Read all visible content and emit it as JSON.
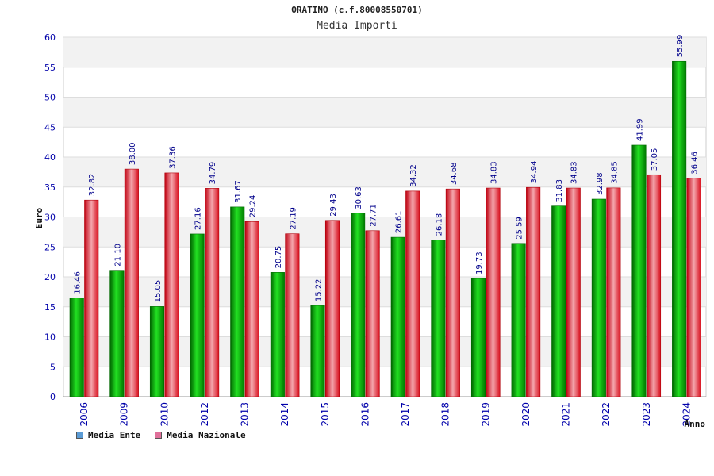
{
  "header": {
    "title": "ORATINO (c.f.80008550701)",
    "subtitle": "Media Importi"
  },
  "legend": {
    "items": [
      {
        "label": "Media Ente",
        "color": "#5b9bd5"
      },
      {
        "label": "Media Nazionale",
        "color": "#e0709a"
      }
    ]
  },
  "chart_data": {
    "type": "bar",
    "title": "Media Importi",
    "xlabel": "Anno",
    "ylabel": "Euro",
    "ylim": [
      0,
      60
    ],
    "yticks": [
      0,
      5,
      10,
      15,
      20,
      25,
      30,
      35,
      40,
      45,
      50,
      55,
      60
    ],
    "grid": true,
    "legend_position": "bottom-left",
    "categories": [
      "2006",
      "2009",
      "2010",
      "2012",
      "2013",
      "2014",
      "2015",
      "2016",
      "2017",
      "2018",
      "2019",
      "2020",
      "2021",
      "2022",
      "2023",
      "2024"
    ],
    "series": [
      {
        "name": "Media Ente",
        "color": "#00c000",
        "values": [
          16.46,
          21.1,
          15.05,
          27.16,
          31.67,
          20.75,
          15.22,
          30.63,
          26.61,
          26.18,
          19.73,
          25.59,
          31.83,
          32.98,
          41.99,
          55.99
        ],
        "labels": [
          "16.46",
          "21.10",
          "15.05",
          "27.16",
          "31.67",
          "20.75",
          "15.22",
          "30.63",
          "26.61",
          "26.18",
          "19.73",
          "25.59",
          "31.83",
          "32.98",
          "41.99",
          "55.99"
        ]
      },
      {
        "name": "Media Nazionale",
        "color": "#e8202e",
        "values": [
          32.82,
          38.0,
          37.36,
          34.79,
          29.24,
          27.19,
          29.43,
          27.71,
          34.32,
          34.68,
          34.83,
          34.94,
          34.83,
          34.85,
          37.05,
          36.46
        ],
        "labels": [
          "32.82",
          "38.00",
          "37.36",
          "34.79",
          "29.24",
          "27.19",
          "29.43",
          "27.71",
          "34.32",
          "34.68",
          "34.83",
          "34.94",
          "34.83",
          "34.85",
          "37.05",
          "36.46"
        ]
      }
    ]
  }
}
